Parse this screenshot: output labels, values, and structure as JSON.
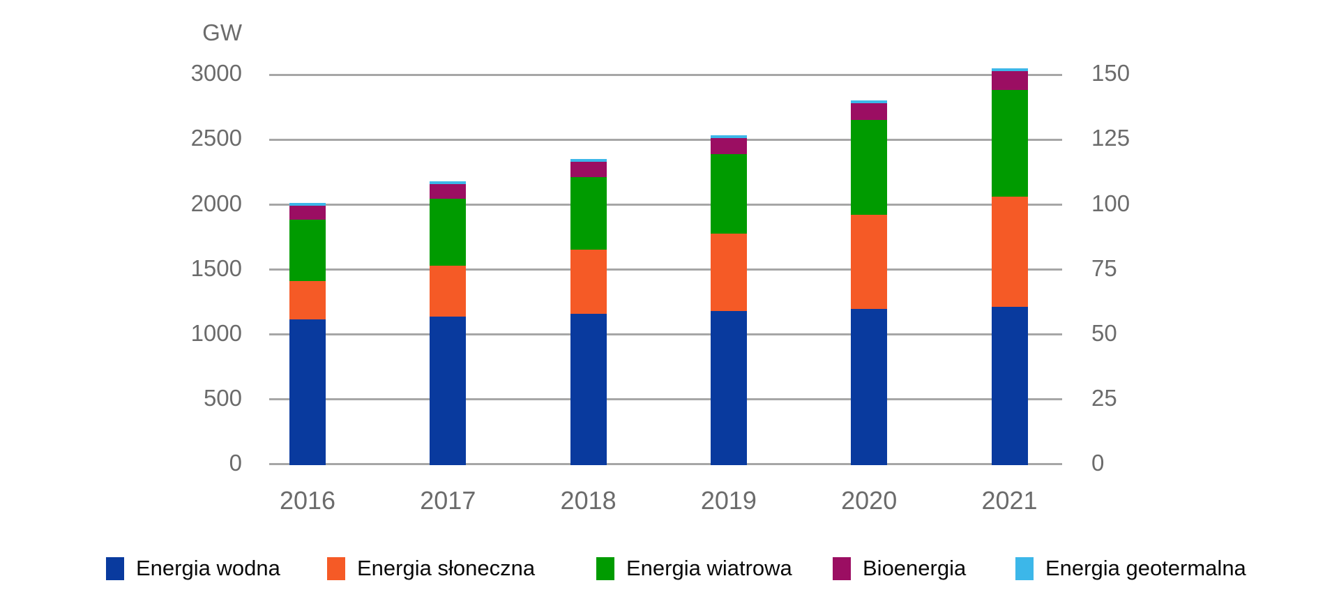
{
  "chart_data": {
    "type": "bar",
    "stacked": true,
    "title": "",
    "categories": [
      "2016",
      "2017",
      "2018",
      "2019",
      "2020",
      "2021"
    ],
    "series": [
      {
        "id": "hydro",
        "name": "Energia wodna",
        "color": "#093a9e",
        "values": [
          1125,
          1145,
          1170,
          1190,
          1205,
          1220
        ]
      },
      {
        "id": "solar",
        "name": "Energia słoneczna",
        "color": "#f55a26",
        "values": [
          295,
          395,
          490,
          595,
          725,
          850
        ]
      },
      {
        "id": "wind",
        "name": "Energia wiatrowa",
        "color": "#009b00",
        "values": [
          475,
          515,
          560,
          610,
          730,
          820
        ]
      },
      {
        "id": "bioenergy",
        "name": "Bioenergia",
        "color": "#9b0e62",
        "values": [
          105,
          110,
          117,
          125,
          127,
          145
        ]
      },
      {
        "id": "geothermal",
        "name": "Energia geotermalna",
        "color": "#3cb7e9",
        "values": [
          13,
          13,
          13,
          14,
          14,
          16
        ]
      }
    ],
    "left_axis": {
      "label": "GW",
      "ticks": [
        3000,
        2500,
        2000,
        1500,
        1000,
        500,
        0
      ],
      "min": 0,
      "max": 3000
    },
    "right_axis": {
      "label": "",
      "ticks": [
        150,
        125,
        100,
        75,
        50,
        25,
        0
      ],
      "min": 0,
      "max": 150
    },
    "grid": true,
    "gridline_color": "#a6a6a6",
    "axis_text_color": "#6b6b6b",
    "legend_position": "bottom",
    "legend_text_color": "#0a0a0a"
  }
}
